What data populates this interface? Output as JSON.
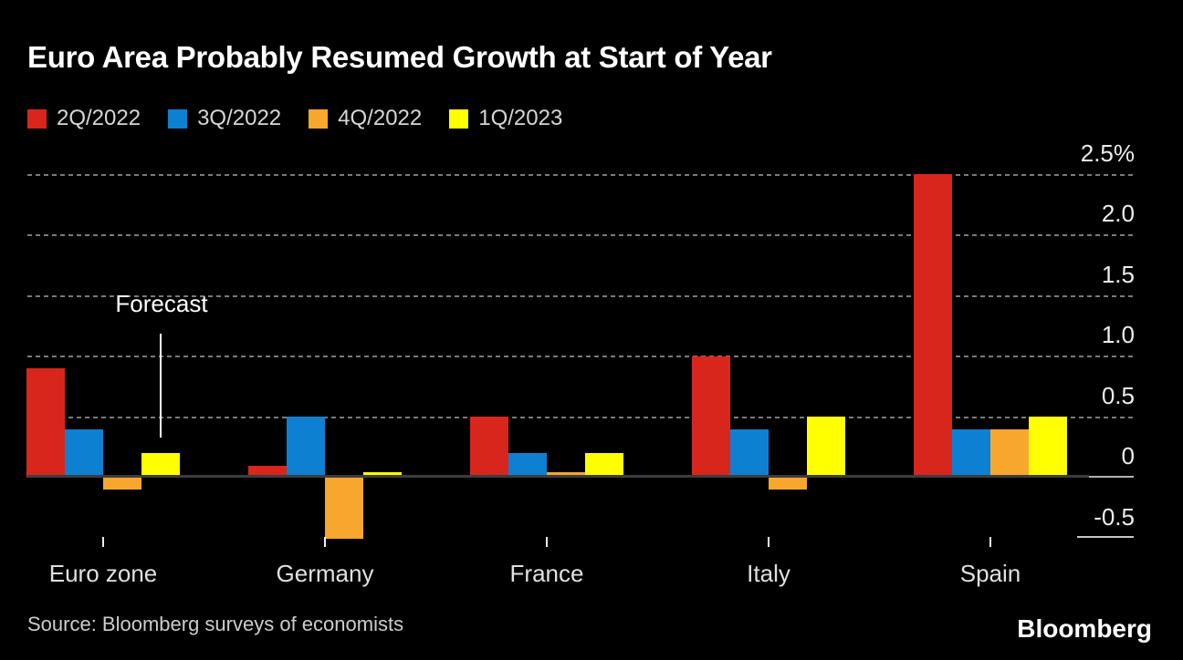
{
  "title": "Euro Area Probably Resumed Growth at Start of Year",
  "source": "Source: Bloomberg surveys of economists",
  "logo": "Bloomberg",
  "colors": {
    "background": "#000000",
    "red": "#d8261d",
    "blue": "#0e80d1",
    "orange": "#f8a72e",
    "yellow": "#ffff00",
    "gridline": "#7a7a7a",
    "zero_line": "#3d3d3d",
    "axis_light": "#b3b3b3"
  },
  "chart_data": {
    "type": "bar",
    "categories": [
      "Euro zone",
      "Germany",
      "France",
      "Italy",
      "Spain"
    ],
    "series": [
      {
        "name": "2Q/2022",
        "color": "#d8261d",
        "values": [
          0.9,
          0.1,
          0.5,
          1.0,
          2.5
        ]
      },
      {
        "name": "3Q/2022",
        "color": "#0e80d1",
        "values": [
          0.4,
          0.5,
          0.2,
          0.4,
          0.4
        ]
      },
      {
        "name": "4Q/2022",
        "color": "#f8a72e",
        "values": [
          -0.1,
          -0.5,
          0.0,
          -0.1,
          0.4
        ]
      },
      {
        "name": "1Q/2023",
        "color": "#ffff00",
        "values": [
          0.2,
          0.0,
          0.2,
          0.5,
          0.5
        ]
      }
    ],
    "unit": "%",
    "yticks": [
      2.5,
      2.0,
      1.5,
      1.0,
      0.5,
      0,
      -0.5
    ],
    "ytick_labels": [
      "2.5%",
      "2.0",
      "1.5",
      "1.0",
      "0.5",
      "0",
      "-0.5"
    ],
    "ylim": [
      -0.5,
      2.5
    ],
    "grid": "horizontal-dashed",
    "legend_position": "top-left",
    "annotation": {
      "text": "Forecast",
      "target": "Euro zone 1Q/2023 bar"
    }
  }
}
